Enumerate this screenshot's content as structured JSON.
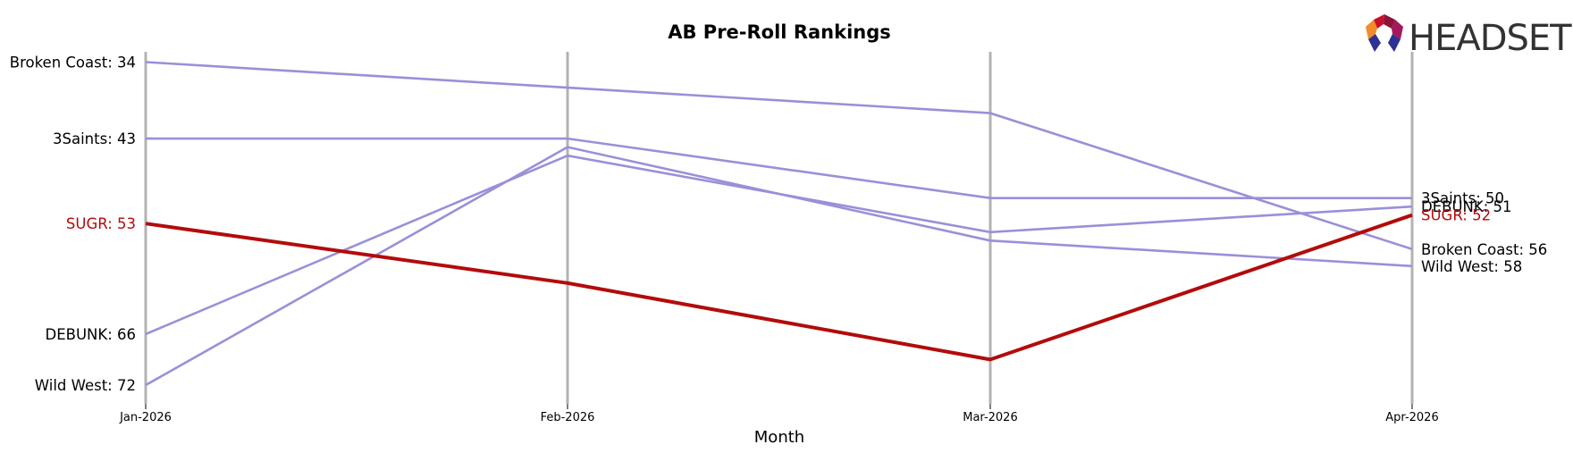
{
  "chart_data": {
    "type": "line",
    "title": "AB Pre-Roll Rankings",
    "xlabel": "Month",
    "ylabel": "",
    "x": [
      "Jan-2026",
      "Feb-2026",
      "Mar-2026",
      "Apr-2026"
    ],
    "y_inverted": true,
    "ylim": [
      31,
      76
    ],
    "grid": "vertical lines at each month",
    "legend": "none (inline end labels on left and right)",
    "series": [
      {
        "name": "Broken Coast",
        "values": [
          34,
          37,
          40,
          56
        ],
        "color": "#9b8fd9",
        "highlight": false
      },
      {
        "name": "3Saints",
        "values": [
          43,
          43,
          50,
          50
        ],
        "color": "#9b8fd9",
        "highlight": false
      },
      {
        "name": "SUGR",
        "values": [
          53,
          60,
          69,
          52
        ],
        "color": "#b30b0b",
        "highlight": true
      },
      {
        "name": "DEBUNK",
        "values": [
          66,
          45,
          54,
          51
        ],
        "color": "#9b8fd9",
        "highlight": false
      },
      {
        "name": "Wild West",
        "values": [
          72,
          44,
          55,
          58
        ],
        "color": "#9b8fd9",
        "highlight": false
      }
    ],
    "left_labels": [
      {
        "series": "Broken Coast",
        "text": "Broken Coast: 34"
      },
      {
        "series": "3Saints",
        "text": "3Saints: 43"
      },
      {
        "series": "SUGR",
        "text": "SUGR: 53"
      },
      {
        "series": "DEBUNK",
        "text": "DEBUNK: 66"
      },
      {
        "series": "Wild West",
        "text": "Wild West: 72"
      }
    ],
    "right_labels": [
      {
        "series": "3Saints",
        "text": "3Saints: 50"
      },
      {
        "series": "DEBUNK",
        "text": "DEBUNK: 51"
      },
      {
        "series": "SUGR",
        "text": "SUGR: 52"
      },
      {
        "series": "Broken Coast",
        "text": "Broken Coast: 56"
      },
      {
        "series": "Wild West",
        "text": "Wild West: 58"
      }
    ]
  },
  "logo": {
    "text": "HEADSET",
    "icon": "headset-logo-icon",
    "colors": [
      "#f28c28",
      "#c8102e",
      "#8b1538",
      "#2e3192"
    ]
  }
}
